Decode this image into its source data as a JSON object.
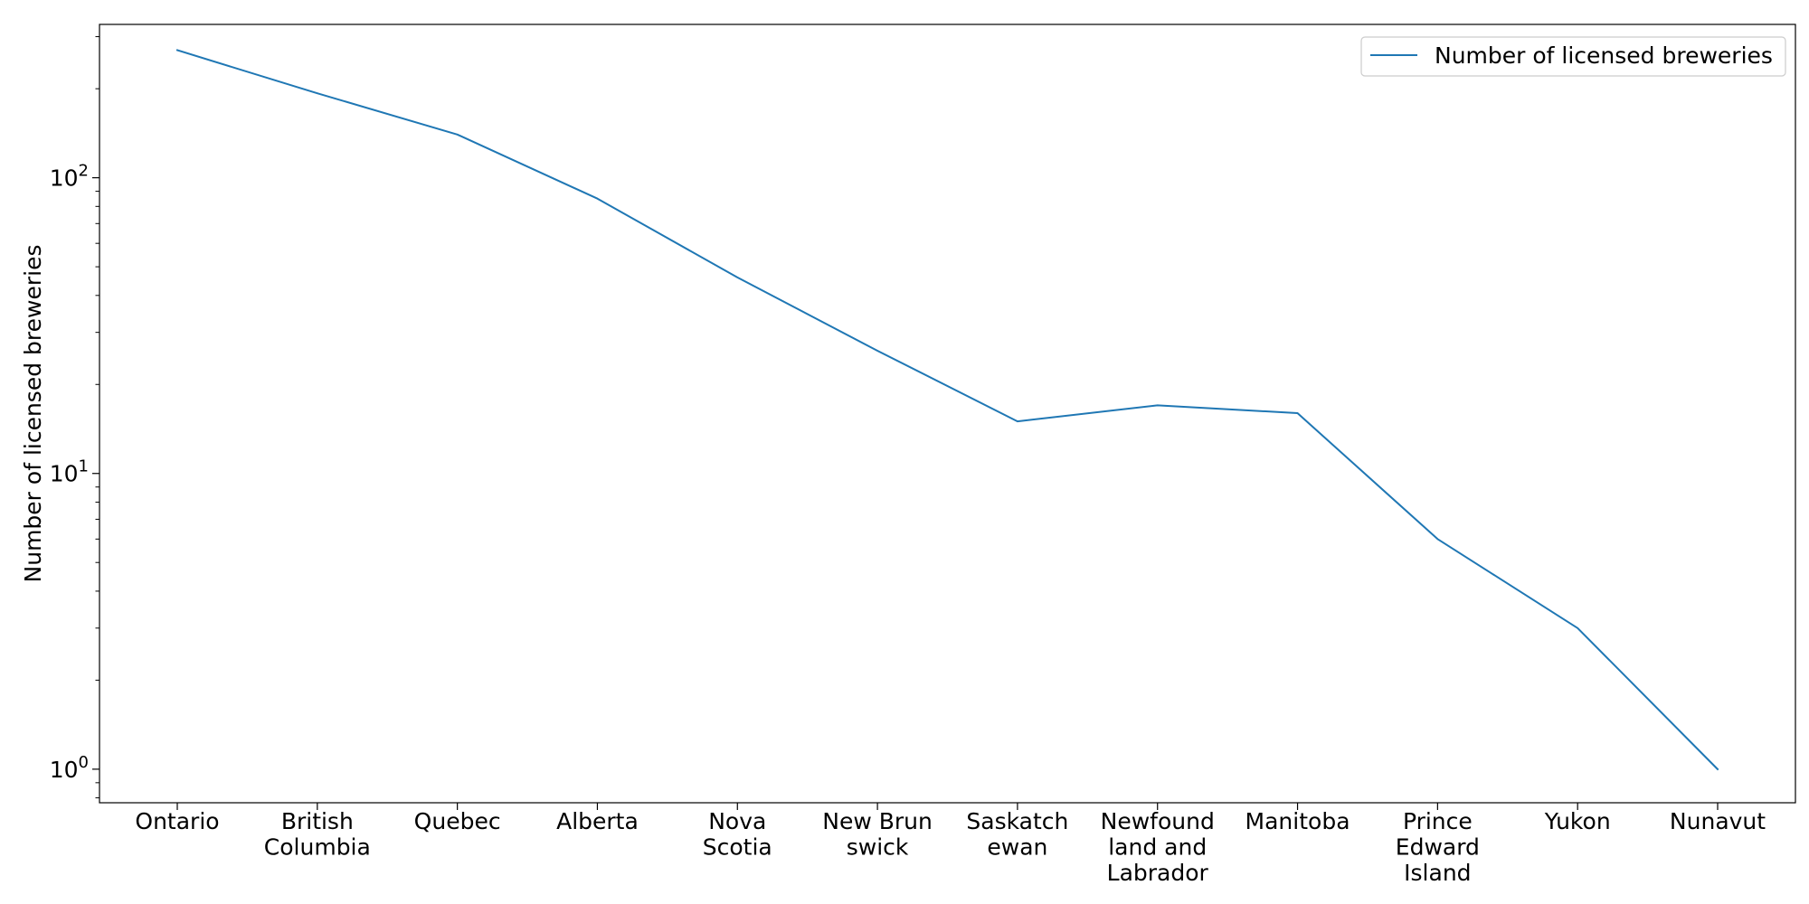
{
  "chart_data": {
    "type": "line",
    "title": "",
    "xlabel": "",
    "ylabel": "Number of licensed breweries",
    "yscale": "log",
    "ylim": [
      0.77,
      330
    ],
    "grid": false,
    "legend_position": "top-right",
    "categories": [
      "Ontario",
      "British\nColumbia",
      "Quebec",
      "Alberta",
      "Nova\nScotia",
      "New Brun\nswick",
      "Saskatch\newan",
      "Newfound\nland and\nLabrador",
      "Manitoba",
      "Prince\nEdward\nIsland",
      "Yukon",
      "Nunavut"
    ],
    "y_ticks": [
      {
        "value": 1,
        "base": "10",
        "exp": "0"
      },
      {
        "value": 10,
        "base": "10",
        "exp": "1"
      },
      {
        "value": 100,
        "base": "10",
        "exp": "2"
      }
    ],
    "series": [
      {
        "name": "Number of licensed breweries",
        "color": "#1f77b4",
        "values": [
          270,
          193,
          140,
          85,
          46,
          26,
          15,
          17,
          16,
          6,
          3,
          1
        ]
      }
    ]
  }
}
